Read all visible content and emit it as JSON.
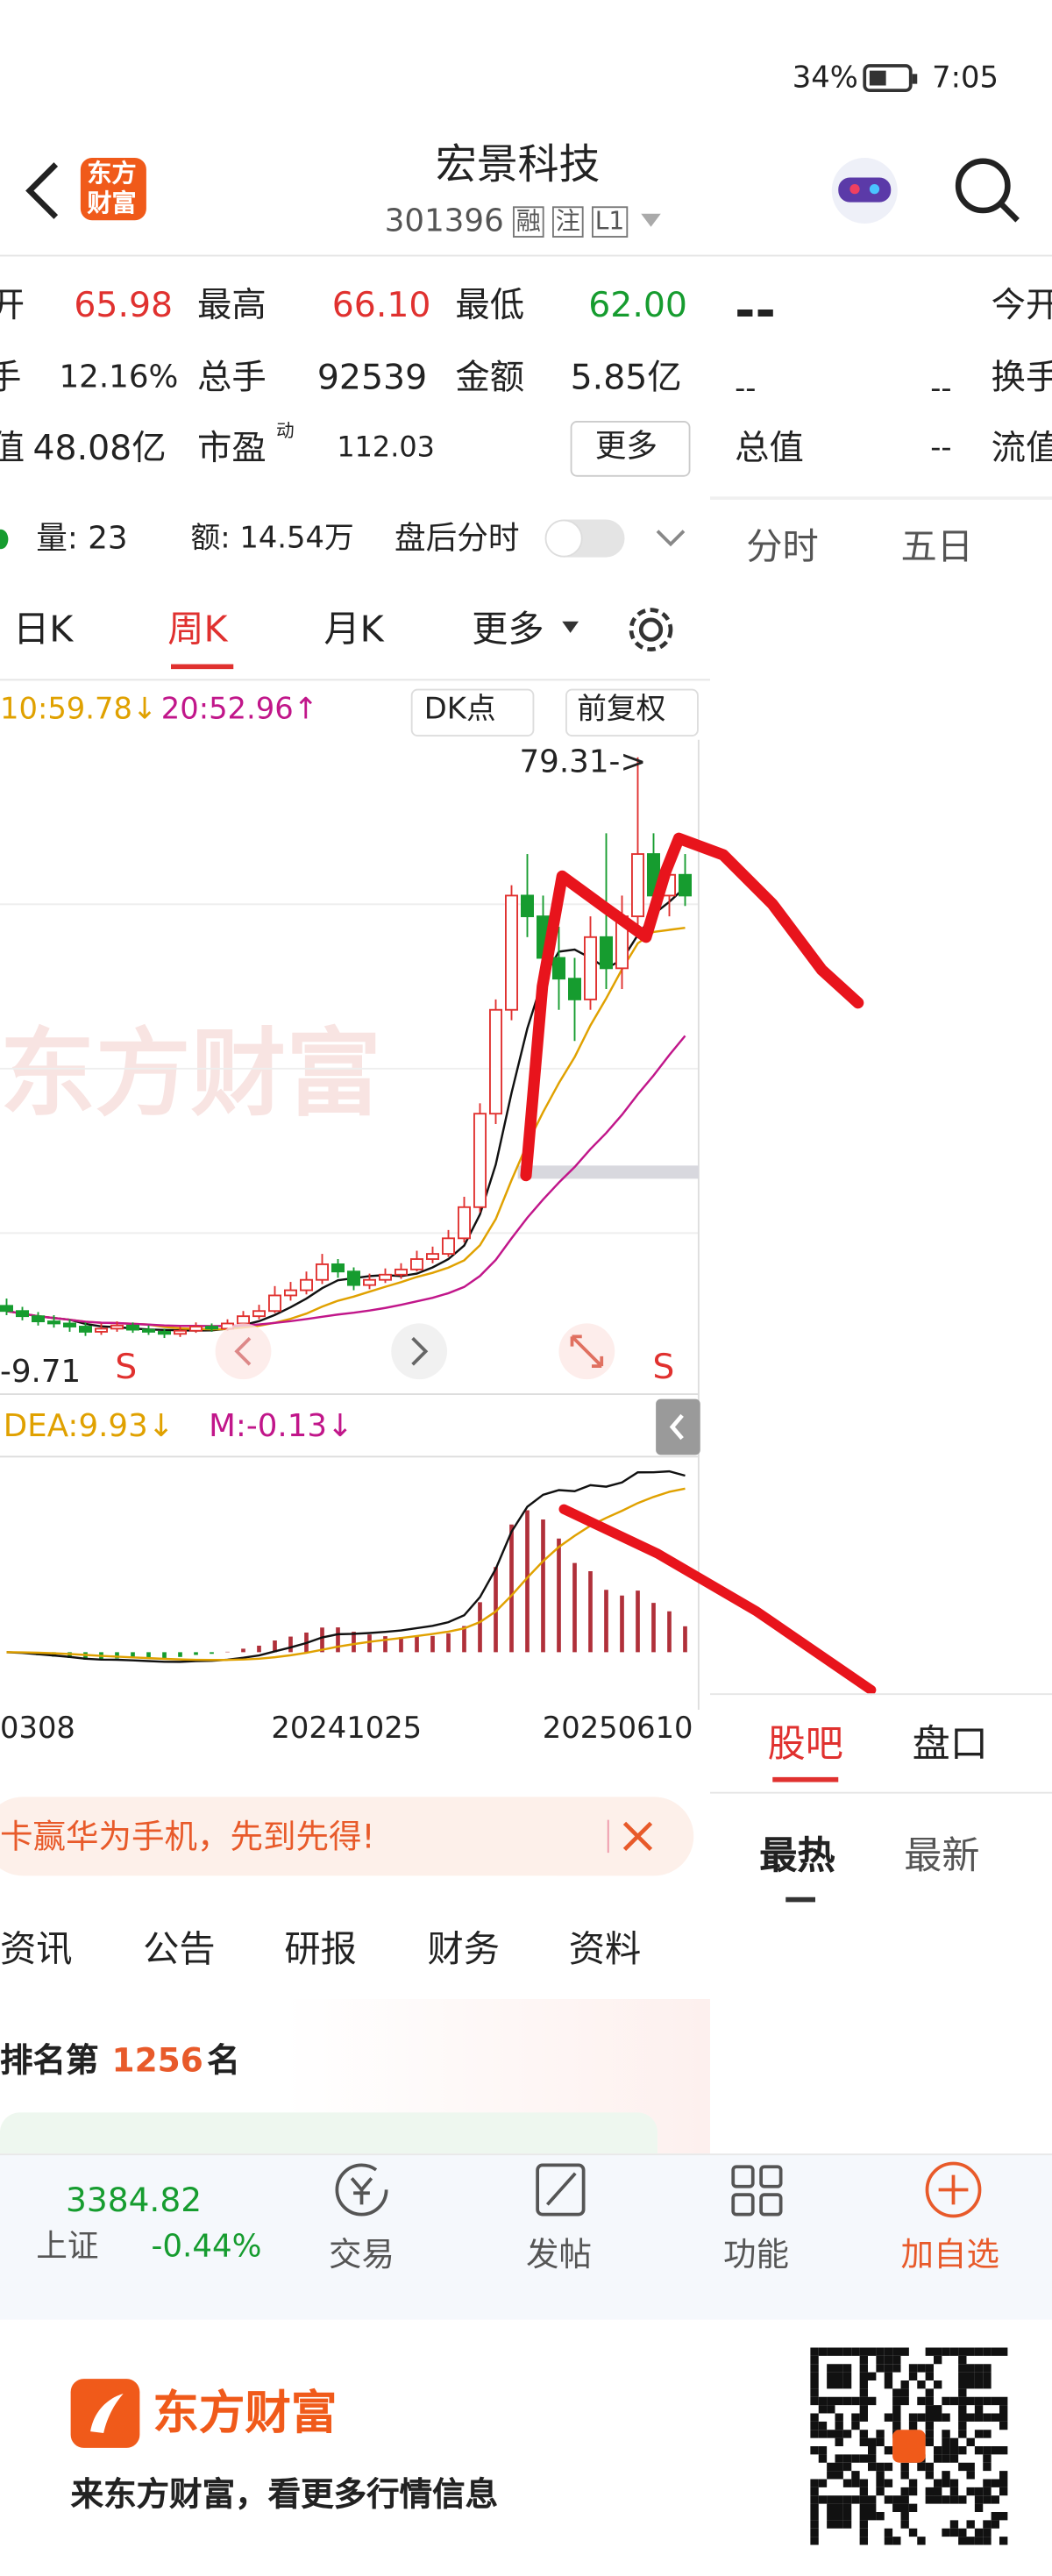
{
  "status_bar": {
    "battery": "34%",
    "time": "7:05"
  },
  "header": {
    "logo": [
      "东方",
      "财富"
    ],
    "title": "宏景科技",
    "code": "301396",
    "tags": [
      "融",
      "注",
      "L1"
    ]
  },
  "quote": {
    "open_label": "开",
    "open": "65.98",
    "high_label": "最高",
    "high": "66.10",
    "low_label": "最低",
    "low": "62.00",
    "turnover_label": "手",
    "turnover": "12.16%",
    "volume_label": "总手",
    "volume": "92539",
    "amount_label": "金额",
    "amount": "5.85亿",
    "cap_label": "值",
    "cap": "48.08亿",
    "pe_label": "市盈",
    "pe_tag": "动",
    "pe": "112.03",
    "more": "更多"
  },
  "side_quote": {
    "price": "--",
    "open_label": "今开",
    "v1": "--",
    "v2": "--",
    "turnover_label": "换手",
    "cap_label": "总值",
    "v3": "--",
    "float_label": "流值"
  },
  "after_hours": {
    "volume": "量: 23",
    "amount": "额: 14.54万",
    "label": "盘后分时"
  },
  "period_tabs": [
    "日K",
    "周K",
    "月K",
    "更多"
  ],
  "side_tabs": [
    "分时",
    "五日"
  ],
  "kline": {
    "ma_legend": [
      "10:59.78↓",
      "20:52.96↑"
    ],
    "buttons": [
      "DK点",
      "前复权"
    ],
    "high_label": "79.31->",
    "low_label": "-9.71",
    "signals": [
      "S",
      "S"
    ],
    "macd_legend": [
      "DEA:9.93↓",
      "M:-0.13↓"
    ],
    "dates": [
      "0308",
      "20241025",
      "20250610"
    ],
    "ylim": [
      18,
      81
    ],
    "candles": [
      [
        26.5,
        27.2,
        25.6,
        26
      ],
      [
        26,
        26.4,
        25.1,
        25.5
      ],
      [
        25.5,
        25.9,
        24.6,
        25
      ],
      [
        25,
        25.6,
        24.4,
        24.8
      ],
      [
        24.8,
        25.2,
        24,
        24.5
      ],
      [
        24.5,
        24.9,
        23.6,
        24
      ],
      [
        24,
        24.8,
        23.7,
        24.3
      ],
      [
        24.3,
        25,
        24,
        24.6
      ],
      [
        24.6,
        24.9,
        23.9,
        24.2
      ],
      [
        24.2,
        24.6,
        23.7,
        24
      ],
      [
        24,
        24.3,
        23.4,
        23.8
      ],
      [
        23.8,
        24.5,
        23.5,
        24.1
      ],
      [
        24.1,
        24.9,
        23.9,
        24.5
      ],
      [
        24.5,
        24.8,
        24,
        24.3
      ],
      [
        24.3,
        25.2,
        24.1,
        24.8
      ],
      [
        24.8,
        26,
        24.6,
        25.5
      ],
      [
        25.5,
        26.6,
        25.2,
        26
      ],
      [
        26,
        28.4,
        25.8,
        27.5
      ],
      [
        27.5,
        28.8,
        27,
        28
      ],
      [
        28,
        29.8,
        27.6,
        29
      ],
      [
        29,
        31.5,
        28.6,
        30.5
      ],
      [
        30.5,
        31,
        29.2,
        29.8
      ],
      [
        29.8,
        30.2,
        28,
        28.5
      ],
      [
        28.5,
        29.6,
        28.1,
        29
      ],
      [
        29,
        30.1,
        28.7,
        29.5
      ],
      [
        29.5,
        30.6,
        29.1,
        30
      ],
      [
        30,
        31.8,
        29.8,
        31
      ],
      [
        31,
        32.2,
        30.6,
        31.5
      ],
      [
        31.5,
        33.8,
        31.2,
        33
      ],
      [
        33,
        37,
        32.6,
        36
      ],
      [
        36,
        46,
        35.5,
        45
      ],
      [
        45,
        56,
        44,
        55
      ],
      [
        55,
        67,
        54,
        66
      ],
      [
        66,
        70,
        62,
        64
      ],
      [
        64,
        66,
        58,
        60
      ],
      [
        60,
        63,
        55,
        58
      ],
      [
        58,
        60,
        52,
        56
      ],
      [
        56,
        64,
        55,
        62
      ],
      [
        62,
        72,
        57,
        59
      ],
      [
        59,
        66,
        57,
        64
      ],
      [
        64,
        79.31,
        62,
        70
      ],
      [
        70,
        72,
        64,
        66
      ],
      [
        66,
        69,
        64,
        68
      ],
      [
        68,
        70,
        65,
        66
      ]
    ]
  },
  "banner": "卡赢华为手机，先到先得!",
  "news_tabs": [
    "资讯",
    "公告",
    "研报",
    "财务",
    "资料"
  ],
  "rank": {
    "prefix": "排名第",
    "number": "1256",
    "suffix": "名"
  },
  "forum_tabs": [
    "股吧",
    "盘口"
  ],
  "forum_sort": [
    "最热",
    "最新"
  ],
  "bottom_bar": {
    "index_value": "3384.82",
    "index_name": "上证",
    "index_change": "-0.44%",
    "actions": [
      "交易",
      "发帖",
      "功能",
      "加自选"
    ]
  },
  "footer": {
    "brand": "东方财富",
    "slogan": "来东方财富，看更多行情信息"
  }
}
